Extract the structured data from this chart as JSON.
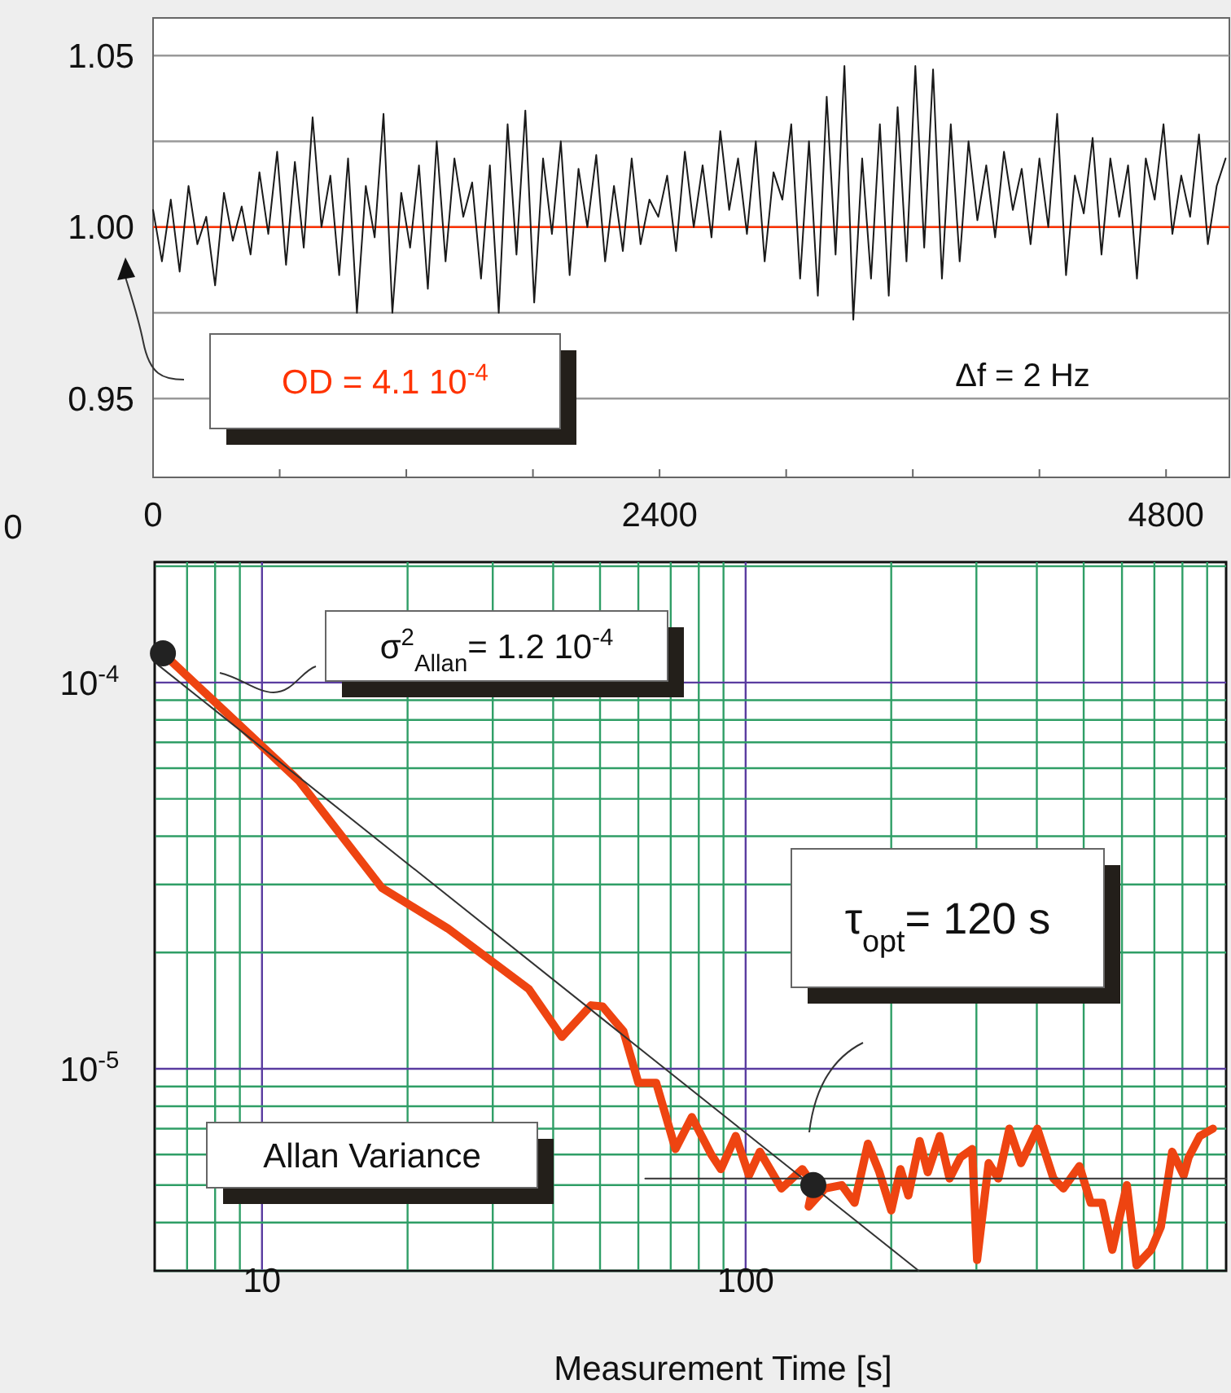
{
  "chart_data": [
    {
      "type": "line",
      "x": [
        0,
        42,
        84,
        126,
        168,
        210,
        252,
        294,
        336,
        378,
        420,
        462,
        504,
        546,
        588,
        630,
        672,
        714,
        756,
        798,
        840,
        882,
        924,
        966,
        1008,
        1050,
        1092,
        1134,
        1176,
        1218,
        1260,
        1302,
        1344,
        1386,
        1428,
        1470,
        1512,
        1554,
        1596,
        1638,
        1680,
        1722,
        1764,
        1806,
        1848,
        1890,
        1932,
        1974,
        2016,
        2058,
        2100,
        2142,
        2184,
        2226,
        2268,
        2310,
        2352,
        2394,
        2436,
        2478,
        2520,
        2562,
        2604,
        2646,
        2688,
        2730,
        2772,
        2814,
        2856,
        2898,
        2940,
        2982,
        3024,
        3066,
        3108,
        3150,
        3192,
        3234,
        3276,
        3318,
        3360,
        3402,
        3444,
        3486,
        3528,
        3570,
        3612,
        3654,
        3696,
        3738,
        3780,
        3822,
        3864,
        3906,
        3948,
        3990,
        4032,
        4074,
        4116,
        4158,
        4200,
        4242,
        4284,
        4326,
        4368,
        4410,
        4452,
        4494,
        4536,
        4578,
        4620,
        4662,
        4704,
        4746,
        4788,
        4830,
        4872,
        4914,
        4956,
        4998,
        5040,
        5082
      ],
      "series": [
        {
          "color": "#1a1a1a",
          "values": [
            1.005,
            0.99,
            1.008,
            0.987,
            1.012,
            0.995,
            1.003,
            0.983,
            1.01,
            0.996,
            1.006,
            0.992,
            1.016,
            0.998,
            1.022,
            0.989,
            1.019,
            0.994,
            1.032,
            1.0,
            1.015,
            0.986,
            1.02,
            0.975,
            1.012,
            0.997,
            1.033,
            0.975,
            1.01,
            0.994,
            1.018,
            0.982,
            1.025,
            0.99,
            1.02,
            1.003,
            1.013,
            0.985,
            1.018,
            0.975,
            1.03,
            0.992,
            1.034,
            0.978,
            1.02,
            0.998,
            1.025,
            0.986,
            1.017,
            1.0,
            1.021,
            0.99,
            1.012,
            0.993,
            1.02,
            0.995,
            1.008,
            1.003,
            1.015,
            0.993,
            1.022,
            1.0,
            1.018,
            0.997,
            1.028,
            1.005,
            1.02,
            0.998,
            1.025,
            0.99,
            1.016,
            1.008,
            1.03,
            0.985,
            1.025,
            0.98,
            1.038,
            0.992,
            1.047,
            0.973,
            1.02,
            0.985,
            1.03,
            0.98,
            1.035,
            0.99,
            1.047,
            0.994,
            1.046,
            0.985,
            1.03,
            0.99,
            1.025,
            1.002,
            1.018,
            0.997,
            1.022,
            1.005,
            1.017,
            0.995,
            1.02,
            1.0,
            1.033,
            0.986,
            1.015,
            1.004,
            1.026,
            0.992,
            1.02,
            1.003,
            1.018,
            0.985,
            1.02,
            1.008,
            1.03,
            0.998,
            1.015,
            1.003,
            1.027,
            0.995,
            1.012,
            1.02
          ]
        }
      ],
      "xlim": [
        0,
        5100
      ],
      "ylim": [
        0.927,
        1.061
      ],
      "xticks": [
        0,
        {
          "value": 600,
          "label": null
        },
        {
          "value": 1200,
          "label": null
        },
        {
          "value": 1800,
          "label": null
        },
        2400,
        {
          "value": 3000,
          "label": null
        },
        {
          "value": 3600,
          "label": null
        },
        {
          "value": 4200,
          "label": null
        },
        4800
      ],
      "yticks": [
        0.95,
        {
          "value": 0.975,
          "label": null
        },
        {
          "value": 1.0,
          "label": "1.00"
        },
        {
          "value": 1.025,
          "label": null
        },
        1.05
      ],
      "grid": "y",
      "ref_lines": [
        {
          "axis": "y",
          "value": 1.0,
          "color": "#ff3300"
        }
      ],
      "annotations": [
        "OD  = 4.1 10$^{-4}$",
        "Δf  = 2 Hz",
        "0"
      ]
    },
    {
      "type": "line",
      "xlabel": "Measurement Time [s]",
      "series": [
        {
          "color": "#ee4411",
          "x": [
            6.24,
            11.9,
            17.7,
            24.2,
            35.6,
            41.7,
            47.9,
            50.6,
            55.9,
            60.0,
            65.3,
            71.6,
            77.4,
            84.9,
            88.9,
            95.4,
            101.6,
            107,
            118.6,
            131,
            138,
            135,
            146,
            158,
            168,
            179,
            189,
            200,
            209,
            217,
            229,
            238,
            252,
            264,
            278,
            294,
            301,
            318,
            333,
            351,
            371,
            401,
            433,
            454,
            490,
            517,
            546,
            573,
            614,
            643,
            689,
            722,
            762,
            805,
            824,
            869,
            925
          ],
          "values": [
            0.000119,
            5.58e-05,
            2.94e-05,
            2.31e-05,
            1.61e-05,
            1.21e-05,
            1.46e-05,
            1.45e-05,
            1.25e-05,
            9.2e-06,
            9.2e-06,
            6.2e-06,
            7.5e-06,
            6e-06,
            5.5e-06,
            6.7e-06,
            5.3e-06,
            6.1e-06,
            4.9e-06,
            5.5e-06,
            5e-06,
            4.4e-06,
            4.9e-06,
            5e-06,
            4.5e-06,
            6.4e-06,
            5.4e-06,
            4.3e-06,
            5.5e-06,
            4.7e-06,
            6.5e-06,
            5.4e-06,
            6.7e-06,
            5.2e-06,
            5.9e-06,
            6.2e-06,
            3.2e-06,
            5.7e-06,
            5.2e-06,
            7e-06,
            5.7e-06,
            7e-06,
            5.2e-06,
            4.9e-06,
            5.6e-06,
            4.5e-06,
            4.5e-06,
            3.4e-06,
            5e-06,
            3.1e-06,
            3.4e-06,
            3.9e-06,
            6.1e-06,
            5.3e-06,
            5.9e-06,
            6.7e-06,
            7e-06
          ]
        },
        {
          "type": "line",
          "color": "#333333",
          "x": [
            6.1,
            228
          ],
          "values": [
            0.000111,
            3e-06
          ]
        },
        {
          "type": "line",
          "color": "#333333",
          "x": [
            62,
            985
          ],
          "values": [
            5.2e-06,
            5.2e-06
          ]
        },
        {
          "type": "scatter",
          "color": "#222222",
          "x": [
            6.24,
            138
          ],
          "values": [
            0.000119,
            5e-06
          ]
        }
      ],
      "log": "xy",
      "xlim": [
        6,
        985
      ],
      "ylim": [
        3e-06,
        0.000205
      ],
      "xticks": [
        {
          "value": 7,
          "label": null
        },
        {
          "value": 8,
          "label": null
        },
        {
          "value": 9,
          "label": null
        },
        10,
        {
          "value": 20,
          "label": null
        },
        {
          "value": 30,
          "label": null
        },
        {
          "value": 40,
          "label": null
        },
        {
          "value": 50,
          "label": null
        },
        {
          "value": 60,
          "label": null
        },
        {
          "value": 70,
          "label": null
        },
        {
          "value": 80,
          "label": null
        },
        {
          "value": 90,
          "label": null
        },
        100,
        {
          "value": 200,
          "label": null
        },
        {
          "value": 300,
          "label": null
        },
        {
          "value": 400,
          "label": null
        },
        {
          "value": 500,
          "label": null
        },
        {
          "value": 600,
          "label": null
        },
        {
          "value": 700,
          "label": null
        },
        {
          "value": 800,
          "label": null
        },
        {
          "value": 900,
          "label": null
        }
      ],
      "yticks": [
        {
          "value": 3e-06,
          "label": null
        },
        {
          "value": 4e-06,
          "label": null
        },
        {
          "value": 5e-06,
          "label": null
        },
        {
          "value": 6e-06,
          "label": null
        },
        {
          "value": 7e-06,
          "label": null
        },
        {
          "value": 8e-06,
          "label": null
        },
        {
          "value": 9e-06,
          "label": null
        },
        {
          "value": 1e-05,
          "label": "10$^{-5}$"
        },
        {
          "value": 2e-05,
          "label": null
        },
        {
          "value": 3e-05,
          "label": null
        },
        {
          "value": 4e-05,
          "label": null
        },
        {
          "value": 5e-05,
          "label": null
        },
        {
          "value": 6e-05,
          "label": null
        },
        {
          "value": 7e-05,
          "label": null
        },
        {
          "value": 8e-05,
          "label": null
        },
        {
          "value": 9e-05,
          "label": null
        },
        {
          "value": 0.0001,
          "label": "10$^{-4}$"
        },
        {
          "value": 0.0002,
          "label": null
        }
      ],
      "grid": true,
      "annotations": [
        "σ$^{2}$$_{Allan}$= 1.2 10$^{-4}$",
        "τ$_{opt}$= 120 s",
        "Allan Variance"
      ]
    }
  ]
}
